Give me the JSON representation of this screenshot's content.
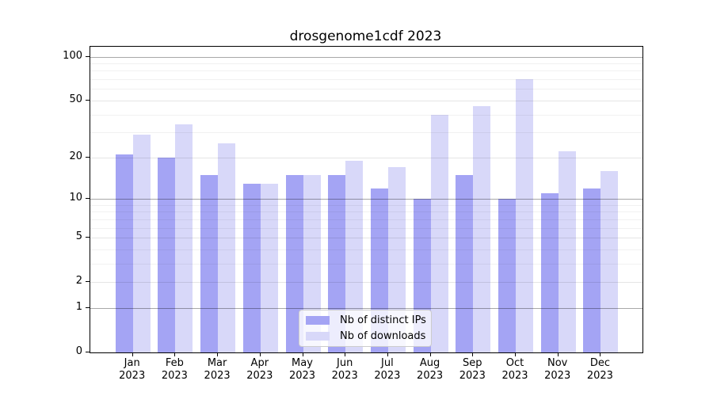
{
  "title": "drosgenome1cdf 2023",
  "chart_data": {
    "type": "bar",
    "title": "drosgenome1cdf 2023",
    "scale": "log1p",
    "categories": [
      "Jan",
      "Feb",
      "Mar",
      "Apr",
      "May",
      "Jun",
      "Jul",
      "Aug",
      "Sep",
      "Oct",
      "Nov",
      "Dec"
    ],
    "year": "2023",
    "series": [
      {
        "key": "ips",
        "name": "Nb of distinct IPs",
        "color": "#a4a4f4",
        "values": [
          21,
          20,
          15,
          13,
          15,
          15,
          12,
          10,
          15,
          10,
          11,
          12
        ]
      },
      {
        "key": "downloads",
        "name": "Nb of downloads",
        "color": "#d8d8f9",
        "values": [
          29,
          34,
          25,
          13,
          15,
          19,
          17,
          40,
          46,
          70,
          22,
          16
        ]
      }
    ],
    "yticks": [
      100,
      50,
      20,
      10,
      5,
      2,
      1,
      0
    ],
    "gridlines": {
      "decade": [
        1,
        10,
        100
      ],
      "major": [
        2,
        5,
        20,
        50
      ],
      "minor": [
        3,
        4,
        6,
        7,
        8,
        9,
        30,
        40,
        60,
        70,
        80,
        90
      ]
    },
    "ylim": [
      0,
      117
    ],
    "grid": true,
    "legend_position": "bottom-center"
  },
  "legend": {
    "items": [
      {
        "label": "Nb of distinct IPs",
        "series": "ips"
      },
      {
        "label": "Nb of downloads",
        "series": "downloads"
      }
    ]
  }
}
